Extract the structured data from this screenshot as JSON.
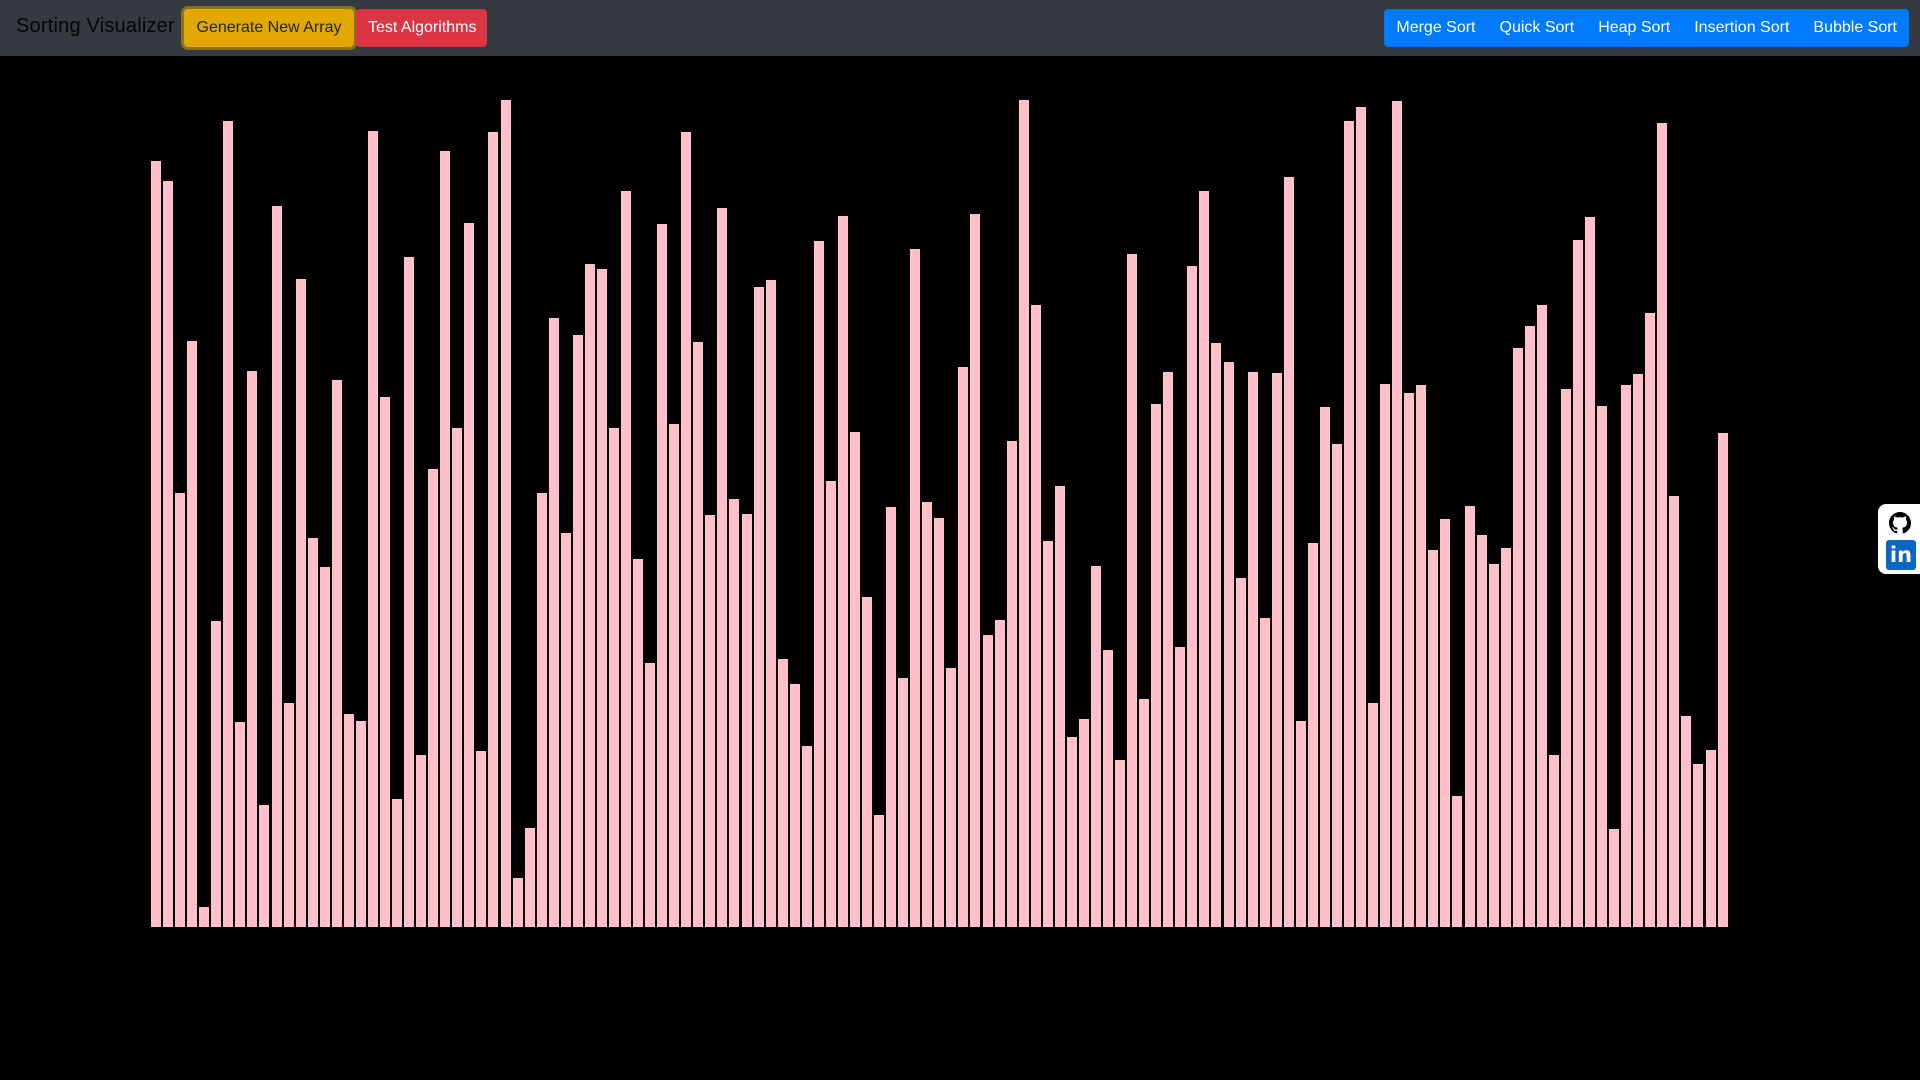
{
  "navbar": {
    "brand": "Sorting Visualizer",
    "generate_label": "Generate New Array",
    "test_label": "Test Algorithms",
    "algorithms": [
      "Merge Sort",
      "Quick Sort",
      "Heap Sort",
      "Insertion Sort",
      "Bubble Sort"
    ]
  },
  "social": {
    "github_icon": "github-icon",
    "linkedin_icon": "linkedin-icon",
    "linkedin_glyph": "in"
  },
  "colors": {
    "bar": "#ffc0cb",
    "background": "#000000",
    "navbar": "#343a40",
    "generate": "#e0a800",
    "test": "#dc3545",
    "algorithms": "#007bff"
  },
  "array": {
    "max_value": 827,
    "values": [
      766,
      746,
      434,
      586,
      20,
      306,
      806,
      205,
      556,
      122,
      721,
      224,
      648,
      389,
      360,
      547,
      213,
      206,
      796,
      530,
      128,
      670,
      172,
      458,
      776,
      499,
      704,
      176,
      795,
      827,
      49,
      99,
      434,
      609,
      394,
      592,
      663,
      658,
      499,
      736,
      368,
      264,
      703,
      503,
      795,
      585,
      412,
      719,
      428,
      413,
      640,
      647,
      268,
      243,
      181,
      686,
      446,
      711,
      495,
      330,
      112,
      420,
      249,
      678,
      425,
      409,
      259,
      560,
      713,
      292,
      307,
      486,
      827,
      622,
      386,
      441,
      190,
      208,
      361,
      277,
      167,
      673,
      228,
      523,
      555,
      280,
      661,
      736,
      584,
      565,
      349,
      555,
      309,
      554,
      750,
      206,
      384,
      520,
      483,
      806,
      820,
      224,
      543,
      826,
      534,
      542,
      377,
      408,
      131,
      421,
      392,
      363,
      379,
      579,
      601,
      622,
      172,
      538,
      687,
      710,
      521,
      98,
      542,
      553,
      614,
      804,
      431,
      211,
      163,
      177,
      494
    ]
  }
}
